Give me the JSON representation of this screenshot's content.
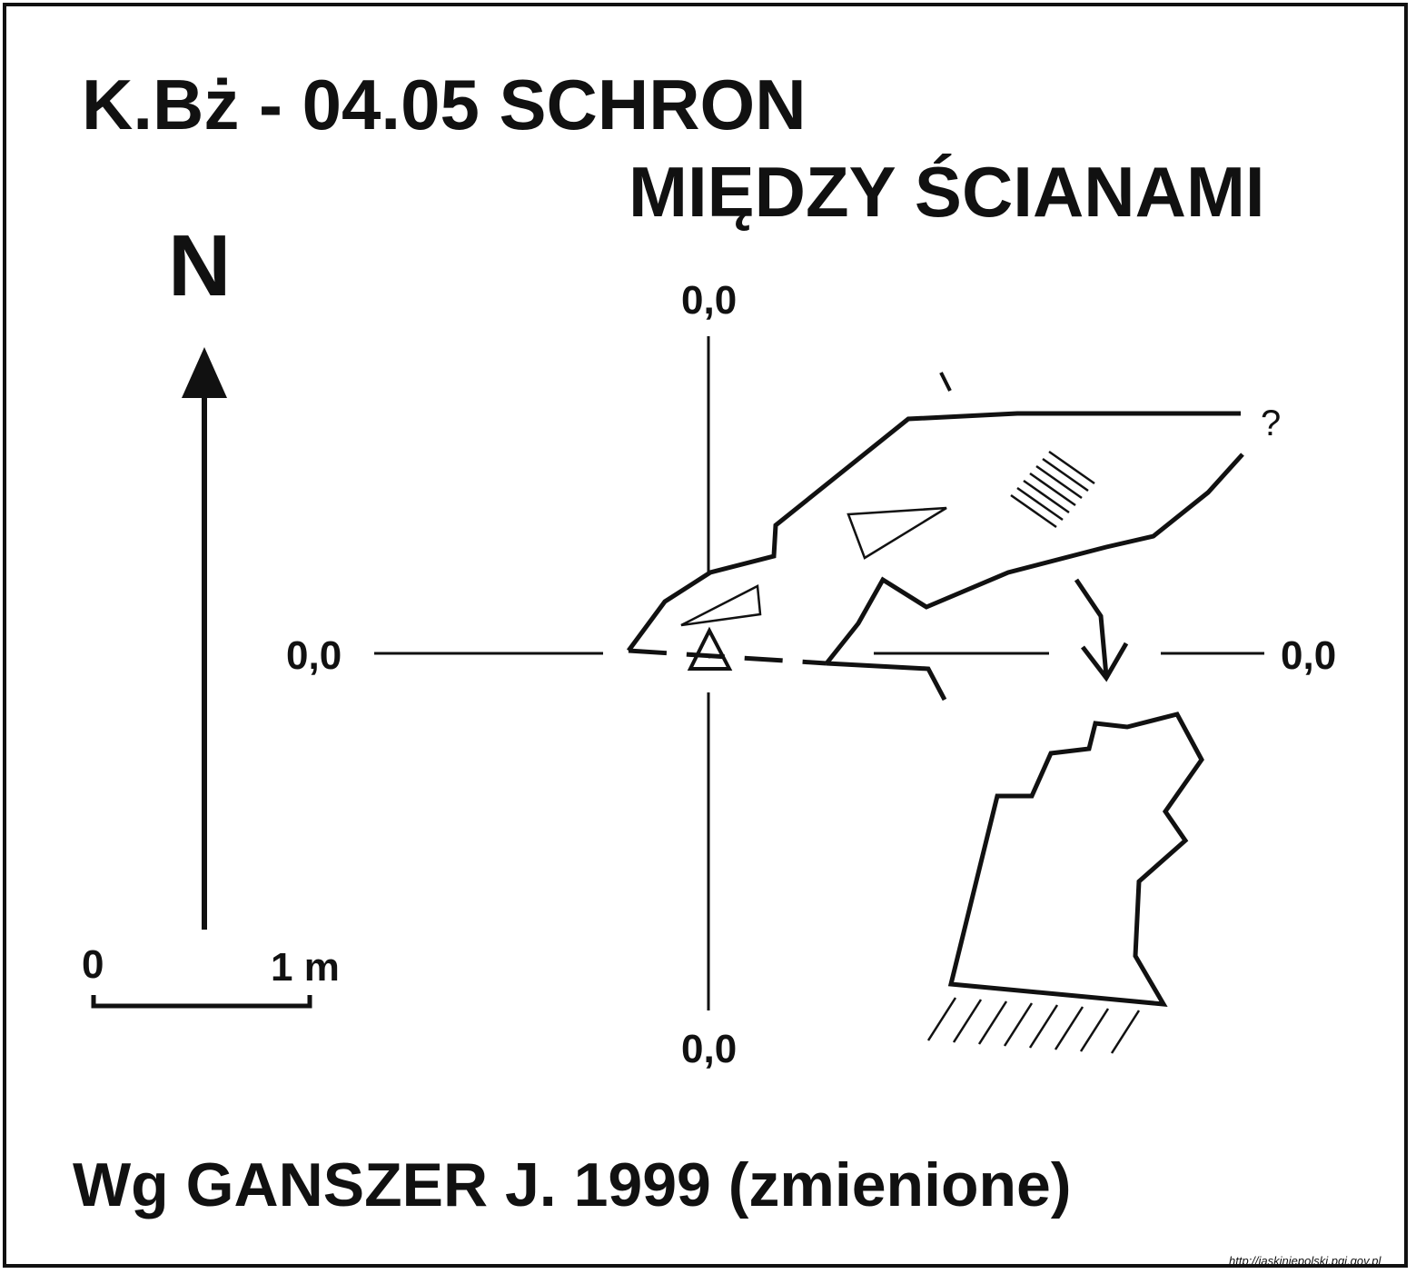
{
  "title": {
    "line1": "K.Bż - 04.05  SCHRON",
    "line2": "MIĘDZY ŚCIANAMI"
  },
  "north_label": "N",
  "coordinates": {
    "top": "0,0",
    "left": "0,0",
    "right": "0,0",
    "bottom": "0,0"
  },
  "scale": {
    "start": "0",
    "end": "1 m"
  },
  "unknown_mark": "?",
  "author": "Wg GANSZER J. 1999 (zmienione)",
  "source_url": "http://jaskiniepolski.pgi.gov.pl",
  "colors": {
    "ink": "#111111",
    "background": "#ffffff"
  }
}
